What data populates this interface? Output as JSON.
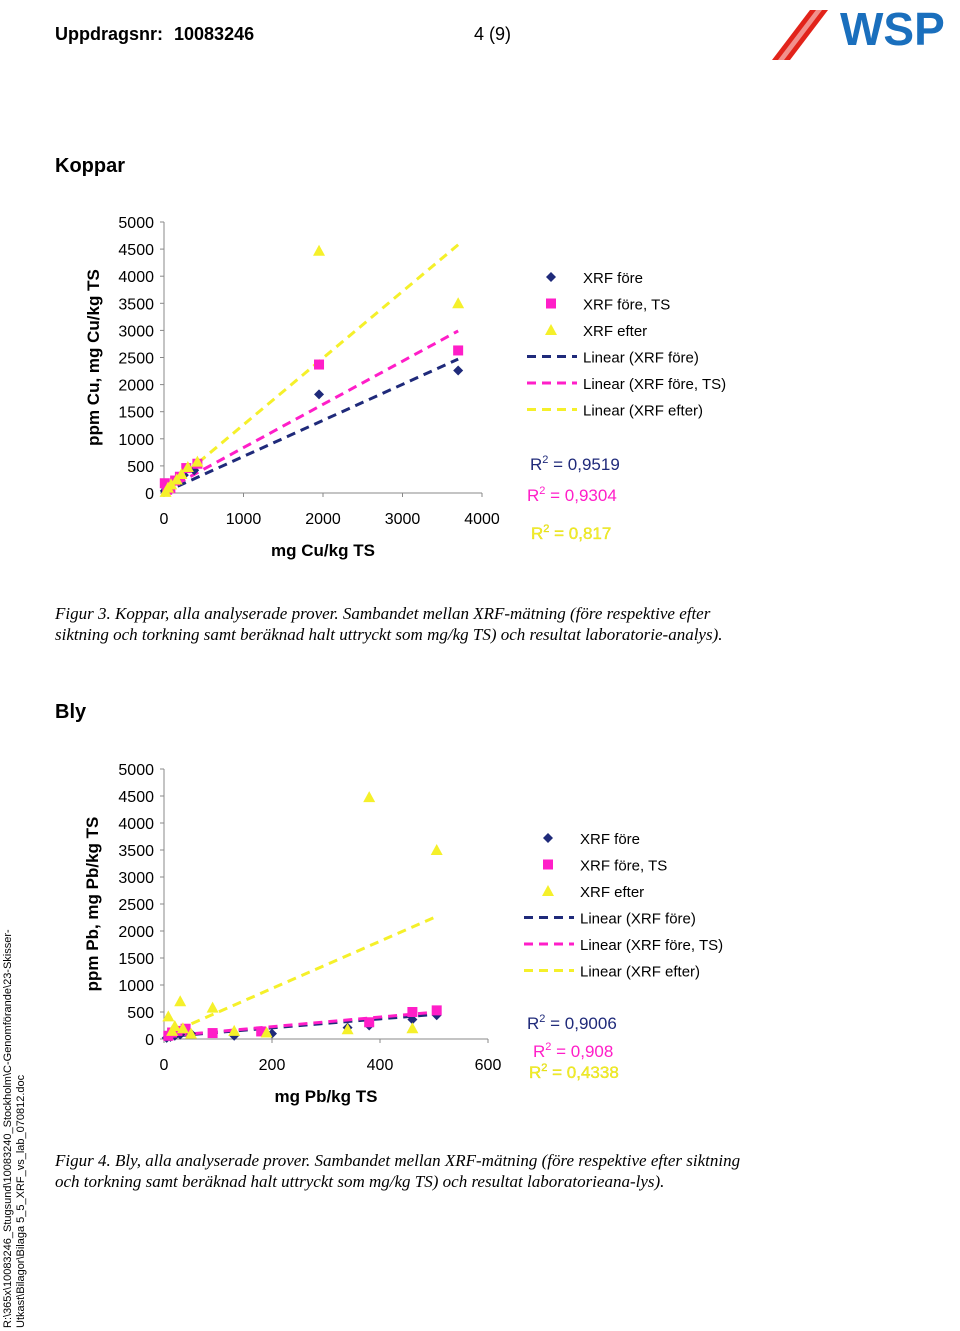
{
  "header": {
    "order_label": "Uppdragsnr:",
    "order_number": "10083246",
    "page": "4 (9)",
    "logo_text": "WSP"
  },
  "sections": {
    "copper_title": "Koppar",
    "lead_title": "Bly"
  },
  "captions": {
    "fig3_label": "Figur 3.",
    "fig3_text": "Koppar, alla analyserade prover. Sambandet mellan XRF-mätning (före respektive efter siktning och torkning samt beräknad halt uttryckt som mg/kg TS) och resultat laboratorie-analys).",
    "fig4_label": "Figur 4.",
    "fig4_text": "Bly, alla analyserade prover. Sambandet mellan XRF-mätning (före respektive efter siktning och torkning samt beräknad halt uttryckt som mg/kg TS) och resultat laboratorieana-lys)."
  },
  "sidebar_path": "R:\\365x\\10083246_Stugsund\\10083240_Stockholm\\C-Genomförande\\23-Skisser-Utkast\\Bilagor\\Bilaga 5_5_XRF_vs_lab_070812.doc",
  "colors": {
    "navy": "#1f2a7a",
    "magenta": "#ff1ec8",
    "yellow": "#f5f02a",
    "logo_blue": "#1a6fbd",
    "logo_red": "#e2231a"
  },
  "chart_data": [
    {
      "type": "scatter",
      "title": "",
      "xlabel": "mg Cu/kg TS",
      "ylabel": "ppm Cu, mg Cu/kg TS",
      "xlim": [
        0,
        4000
      ],
      "ylim": [
        0,
        5000
      ],
      "xticks": [
        "0",
        "1000",
        "2000",
        "3000",
        "4000"
      ],
      "yticks": [
        "0",
        "500",
        "1000",
        "1500",
        "2000",
        "2500",
        "3000",
        "3500",
        "4000",
        "4500",
        "5000"
      ],
      "series": [
        {
          "name": "XRF före",
          "marker": "diamond",
          "color": "#1f2a7a",
          "points": [
            [
              10,
              40
            ],
            [
              30,
              80
            ],
            [
              60,
              110
            ],
            [
              120,
              200
            ],
            [
              180,
              260
            ],
            [
              250,
              330
            ],
            [
              380,
              420
            ],
            [
              1950,
              1820
            ],
            [
              3700,
              2260
            ]
          ]
        },
        {
          "name": "XRF före, TS",
          "marker": "square",
          "color": "#ff1ec8",
          "points": [
            [
              10,
              180
            ],
            [
              40,
              60
            ],
            [
              80,
              90
            ],
            [
              140,
              230
            ],
            [
              200,
              300
            ],
            [
              280,
              460
            ],
            [
              420,
              540
            ],
            [
              1950,
              2370
            ],
            [
              3700,
              2630
            ]
          ]
        },
        {
          "name": "XRF efter",
          "marker": "triangle",
          "color": "#f5f02a",
          "points": [
            [
              20,
              20
            ],
            [
              50,
              100
            ],
            [
              90,
              160
            ],
            [
              160,
              250
            ],
            [
              220,
              350
            ],
            [
              300,
              480
            ],
            [
              420,
              580
            ],
            [
              1950,
              4470
            ],
            [
              3700,
              3500
            ]
          ]
        }
      ],
      "trendlines": [
        {
          "name": "Linear (XRF före)",
          "color": "#1f2a7a",
          "x": [
            0,
            3700
          ],
          "y": [
            10,
            2470
          ],
          "r2": "R 2 = 0,9519"
        },
        {
          "name": "Linear (XRF före, TS)",
          "color": "#ff1ec8",
          "x": [
            0,
            3700
          ],
          "y": [
            40,
            2990
          ],
          "r2": "R 2 = 0,9304"
        },
        {
          "name": "Linear (XRF efter)",
          "color": "#f5f02a",
          "x": [
            0,
            3700
          ],
          "y": [
            30,
            4580
          ],
          "r2": "R 2 = 0,817"
        }
      ]
    },
    {
      "type": "scatter",
      "title": "",
      "xlabel": "mg Pb/kg TS",
      "ylabel": "ppm Pb, mg Pb/kg TS",
      "xlim": [
        0,
        600
      ],
      "ylim": [
        0,
        5000
      ],
      "xticks": [
        "0",
        "200",
        "400",
        "600"
      ],
      "yticks": [
        "0",
        "500",
        "1000",
        "1500",
        "2000",
        "2500",
        "3000",
        "3500",
        "4000",
        "4500",
        "5000"
      ],
      "series": [
        {
          "name": "XRF före",
          "marker": "diamond",
          "color": "#1f2a7a",
          "points": [
            [
              5,
              20
            ],
            [
              12,
              40
            ],
            [
              20,
              60
            ],
            [
              30,
              80
            ],
            [
              50,
              100
            ],
            [
              130,
              60
            ],
            [
              200,
              100
            ],
            [
              340,
              210
            ],
            [
              380,
              250
            ],
            [
              460,
              360
            ],
            [
              505,
              440
            ]
          ]
        },
        {
          "name": "XRF före, TS",
          "marker": "square",
          "color": "#ff1ec8",
          "points": [
            [
              8,
              60
            ],
            [
              15,
              120
            ],
            [
              25,
              150
            ],
            [
              40,
              190
            ],
            [
              90,
              110
            ],
            [
              180,
              140
            ],
            [
              380,
              310
            ],
            [
              460,
              500
            ],
            [
              505,
              530
            ]
          ]
        },
        {
          "name": "XRF efter",
          "marker": "triangle",
          "color": "#f5f02a",
          "points": [
            [
              8,
              420
            ],
            [
              15,
              150
            ],
            [
              20,
              240
            ],
            [
              30,
              700
            ],
            [
              35,
              200
            ],
            [
              50,
              100
            ],
            [
              90,
              580
            ],
            [
              130,
              150
            ],
            [
              190,
              120
            ],
            [
              340,
              180
            ],
            [
              380,
              4480
            ],
            [
              460,
              200
            ],
            [
              505,
              3500
            ]
          ]
        }
      ],
      "trendlines": [
        {
          "name": "Linear (XRF före)",
          "color": "#1f2a7a",
          "x": [
            0,
            505
          ],
          "y": [
            40,
            460
          ],
          "r2": "R 2 = 0,9006"
        },
        {
          "name": "Linear (XRF före, TS)",
          "color": "#ff1ec8",
          "x": [
            0,
            505
          ],
          "y": [
            50,
            500
          ],
          "r2": "R 2 = 0,908"
        },
        {
          "name": "Linear (XRF efter)",
          "color": "#f5f02a",
          "x": [
            0,
            505
          ],
          "y": [
            60,
            2270
          ],
          "r2": "R 2 = 0,4338"
        }
      ]
    }
  ]
}
